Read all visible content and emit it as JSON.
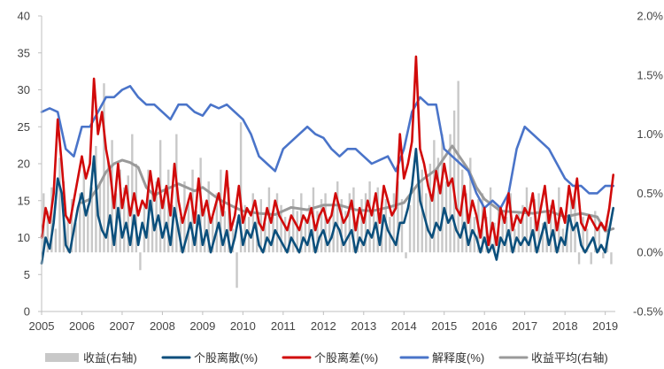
{
  "chart_data": {
    "type": "line",
    "title": "",
    "xlabel": "",
    "ylabel": "",
    "ylabel_right": "",
    "x_ticks": [
      "2005",
      "2006",
      "2007",
      "2008",
      "2009",
      "2010",
      "2011",
      "2012",
      "2013",
      "2014",
      "2015",
      "2016",
      "2017",
      "2018",
      "2019"
    ],
    "x_range": [
      2005.0,
      2019.25
    ],
    "y_left_ticks": [
      "0",
      "5",
      "10",
      "15",
      "20",
      "25",
      "30",
      "35",
      "40"
    ],
    "y_left_range": [
      0,
      40
    ],
    "y_right_ticks": [
      "-0.5%",
      "0.0%",
      "0.5%",
      "1.0%",
      "1.5%",
      "2.0%"
    ],
    "y_right_range": [
      -0.5,
      2.0
    ],
    "grid": false,
    "legend_position": "bottom",
    "legend": [
      "收益(右轴)",
      "个股离散(%)",
      "个股离差(%)",
      "解释度(%)",
      "收益平均(右轴)"
    ],
    "colors": {
      "收益(右轴)": "#c8c8c8",
      "个股离散(%)": "#0b4f7c",
      "个股离差(%)": "#d10a0a",
      "解释度(%)": "#4a74c9",
      "收益平均(右轴)": "#9a9a9a"
    },
    "series": [
      {
        "name": "个股离散(%)",
        "axis": "left",
        "type": "line",
        "x": [
          2005.0,
          2005.1,
          2005.2,
          2005.3,
          2005.4,
          2005.5,
          2005.6,
          2005.7,
          2005.8,
          2005.9,
          2006.0,
          2006.1,
          2006.2,
          2006.3,
          2006.4,
          2006.5,
          2006.6,
          2006.7,
          2006.8,
          2006.9,
          2007.0,
          2007.1,
          2007.2,
          2007.3,
          2007.4,
          2007.5,
          2007.6,
          2007.7,
          2007.8,
          2007.9,
          2008.0,
          2008.1,
          2008.2,
          2008.3,
          2008.4,
          2008.5,
          2008.6,
          2008.7,
          2008.8,
          2008.9,
          2009.0,
          2009.1,
          2009.2,
          2009.3,
          2009.4,
          2009.5,
          2009.6,
          2009.7,
          2009.8,
          2009.9,
          2010.0,
          2010.1,
          2010.2,
          2010.3,
          2010.4,
          2010.5,
          2010.6,
          2010.7,
          2010.8,
          2010.9,
          2011.0,
          2011.1,
          2011.2,
          2011.3,
          2011.4,
          2011.5,
          2011.6,
          2011.7,
          2011.8,
          2011.9,
          2012.0,
          2012.1,
          2012.2,
          2012.3,
          2012.4,
          2012.5,
          2012.6,
          2012.7,
          2012.8,
          2012.9,
          2013.0,
          2013.1,
          2013.2,
          2013.3,
          2013.4,
          2013.5,
          2013.6,
          2013.7,
          2013.8,
          2013.9,
          2014.0,
          2014.1,
          2014.2,
          2014.3,
          2014.4,
          2014.5,
          2014.6,
          2014.7,
          2014.8,
          2014.9,
          2015.0,
          2015.1,
          2015.2,
          2015.3,
          2015.4,
          2015.5,
          2015.6,
          2015.7,
          2015.8,
          2015.9,
          2016.0,
          2016.1,
          2016.2,
          2016.3,
          2016.4,
          2016.5,
          2016.6,
          2016.7,
          2016.8,
          2016.9,
          2017.0,
          2017.1,
          2017.2,
          2017.3,
          2017.4,
          2017.5,
          2017.6,
          2017.7,
          2017.8,
          2017.9,
          2018.0,
          2018.1,
          2018.2,
          2018.3,
          2018.4,
          2018.5,
          2018.6,
          2018.7,
          2018.8,
          2018.9,
          2019.0,
          2019.1,
          2019.2
        ],
        "values": [
          6.5,
          10,
          8.5,
          12,
          18,
          16,
          9,
          8,
          11,
          14,
          16,
          13,
          15,
          21,
          13,
          11,
          10,
          13,
          9,
          14,
          10,
          12,
          9,
          13,
          9,
          12,
          10,
          15,
          11,
          13,
          10,
          12,
          9,
          14,
          11,
          8,
          10,
          12,
          9,
          13,
          9,
          11,
          8,
          10,
          12,
          9,
          11,
          8,
          10,
          13,
          9,
          11,
          10,
          12,
          9,
          8,
          10,
          9,
          11,
          10,
          9,
          8,
          10,
          9,
          8,
          10,
          9,
          11,
          8,
          10,
          11,
          9,
          10,
          12,
          11,
          9,
          10,
          11,
          8,
          10,
          9,
          11,
          10,
          12,
          9,
          13,
          11,
          10,
          9,
          12,
          12,
          14,
          17,
          22,
          15,
          13,
          11,
          10,
          12,
          11,
          14,
          12,
          13,
          11,
          10,
          12,
          9,
          11,
          10,
          8,
          10,
          8,
          9,
          7,
          10,
          9,
          11,
          8,
          10,
          9,
          10,
          9,
          11,
          8,
          10,
          12,
          9,
          11,
          8,
          10,
          9,
          13,
          11,
          12,
          9,
          8,
          9,
          10,
          8,
          9,
          8,
          11,
          14
        ]
      },
      {
        "name": "个股离差(%)",
        "axis": "left",
        "type": "line",
        "x": [
          2005.0,
          2005.1,
          2005.2,
          2005.3,
          2005.4,
          2005.5,
          2005.6,
          2005.7,
          2005.8,
          2005.9,
          2006.0,
          2006.1,
          2006.2,
          2006.3,
          2006.4,
          2006.5,
          2006.6,
          2006.7,
          2006.8,
          2006.9,
          2007.0,
          2007.1,
          2007.2,
          2007.3,
          2007.4,
          2007.5,
          2007.6,
          2007.7,
          2007.8,
          2007.9,
          2008.0,
          2008.1,
          2008.2,
          2008.3,
          2008.4,
          2008.5,
          2008.6,
          2008.7,
          2008.8,
          2008.9,
          2009.0,
          2009.1,
          2009.2,
          2009.3,
          2009.4,
          2009.5,
          2009.6,
          2009.7,
          2009.8,
          2009.9,
          2010.0,
          2010.1,
          2010.2,
          2010.3,
          2010.4,
          2010.5,
          2010.6,
          2010.7,
          2010.8,
          2010.9,
          2011.0,
          2011.1,
          2011.2,
          2011.3,
          2011.4,
          2011.5,
          2011.6,
          2011.7,
          2011.8,
          2011.9,
          2012.0,
          2012.1,
          2012.2,
          2012.3,
          2012.4,
          2012.5,
          2012.6,
          2012.7,
          2012.8,
          2012.9,
          2013.0,
          2013.1,
          2013.2,
          2013.3,
          2013.4,
          2013.5,
          2013.6,
          2013.7,
          2013.8,
          2013.9,
          2014.0,
          2014.1,
          2014.2,
          2014.3,
          2014.4,
          2014.5,
          2014.6,
          2014.7,
          2014.8,
          2014.9,
          2015.0,
          2015.1,
          2015.2,
          2015.3,
          2015.4,
          2015.5,
          2015.6,
          2015.7,
          2015.8,
          2015.9,
          2016.0,
          2016.1,
          2016.2,
          2016.3,
          2016.4,
          2016.5,
          2016.6,
          2016.7,
          2016.8,
          2016.9,
          2017.0,
          2017.1,
          2017.2,
          2017.3,
          2017.4,
          2017.5,
          2017.6,
          2017.7,
          2017.8,
          2017.9,
          2018.0,
          2018.1,
          2018.2,
          2018.3,
          2018.4,
          2018.5,
          2018.6,
          2018.7,
          2018.8,
          2018.9,
          2019.0,
          2019.1,
          2019.2
        ],
        "values": [
          10,
          14,
          12,
          16,
          26,
          20,
          13,
          12,
          15,
          18,
          21,
          18,
          20,
          31.5,
          24,
          27,
          22,
          19,
          14,
          20,
          14,
          17,
          13,
          16,
          13,
          15,
          14,
          19,
          15,
          18,
          14,
          17,
          13,
          20,
          15,
          12,
          14,
          16,
          12,
          18,
          13,
          15,
          12,
          14,
          16,
          13,
          19,
          11,
          13,
          17,
          12,
          14,
          13,
          15,
          12,
          11,
          14,
          12,
          15,
          13,
          12,
          11,
          13,
          12,
          11,
          13,
          12,
          14,
          11,
          13,
          14,
          12,
          13,
          16,
          14,
          12,
          13,
          15,
          11,
          14,
          12,
          15,
          13,
          16,
          12,
          17,
          15,
          13,
          14,
          24,
          18,
          20,
          23,
          34.5,
          22,
          20,
          17,
          15,
          19,
          16,
          20,
          17,
          18,
          14,
          13,
          17,
          12,
          15,
          13,
          10,
          14,
          9,
          12,
          9,
          14,
          12,
          16,
          11,
          13,
          12,
          14,
          13,
          16,
          11,
          14,
          17,
          12,
          15,
          11,
          14,
          12,
          17,
          14,
          18,
          12,
          11,
          13,
          12,
          11,
          12,
          11,
          14,
          18.5
        ]
      },
      {
        "name": "解释度(%)",
        "axis": "left",
        "type": "line",
        "x": [
          2005.0,
          2005.2,
          2005.4,
          2005.6,
          2005.8,
          2006.0,
          2006.2,
          2006.4,
          2006.6,
          2006.8,
          2007.0,
          2007.2,
          2007.4,
          2007.6,
          2007.8,
          2008.0,
          2008.2,
          2008.4,
          2008.6,
          2008.8,
          2009.0,
          2009.2,
          2009.4,
          2009.6,
          2009.8,
          2010.0,
          2010.2,
          2010.4,
          2010.6,
          2010.8,
          2011.0,
          2011.2,
          2011.4,
          2011.6,
          2011.8,
          2012.0,
          2012.2,
          2012.4,
          2012.6,
          2012.8,
          2013.0,
          2013.2,
          2013.4,
          2013.6,
          2013.8,
          2014.0,
          2014.2,
          2014.4,
          2014.6,
          2014.8,
          2015.0,
          2015.2,
          2015.4,
          2015.6,
          2015.8,
          2016.0,
          2016.2,
          2016.4,
          2016.6,
          2016.8,
          2017.0,
          2017.2,
          2017.4,
          2017.6,
          2017.8,
          2018.0,
          2018.2,
          2018.4,
          2018.6,
          2018.8,
          2019.0,
          2019.2
        ],
        "values": [
          27,
          27.5,
          27,
          22,
          21,
          25,
          25,
          27,
          29,
          29,
          30,
          30.5,
          29,
          28,
          28,
          27,
          26,
          28,
          28,
          27,
          26.5,
          28,
          27.5,
          28,
          27,
          26,
          24,
          21,
          20,
          19,
          22,
          23,
          24,
          25,
          24,
          23.5,
          22,
          21,
          22,
          22,
          21,
          20,
          20.5,
          21,
          19,
          22,
          27,
          29,
          28,
          28,
          22,
          21,
          20,
          19,
          16,
          14,
          15,
          14,
          16,
          22,
          25,
          24,
          23,
          22,
          20,
          18,
          17,
          17,
          16,
          16,
          17,
          17
        ]
      },
      {
        "name": "收益平均(右轴)",
        "axis": "right",
        "type": "line",
        "x": [
          2005.0,
          2005.4,
          2005.8,
          2006.0,
          2006.2,
          2006.4,
          2006.6,
          2006.8,
          2007.0,
          2007.2,
          2007.4,
          2007.6,
          2007.8,
          2008.0,
          2008.4,
          2008.8,
          2009.0,
          2009.4,
          2009.8,
          2010.0,
          2010.4,
          2010.8,
          2011.2,
          2011.6,
          2012.0,
          2012.4,
          2012.8,
          2013.2,
          2013.6,
          2014.0,
          2014.4,
          2014.8,
          2015.0,
          2015.2,
          2015.4,
          2015.6,
          2015.8,
          2016.0,
          2016.4,
          2016.8,
          2017.2,
          2017.6,
          2018.0,
          2018.4,
          2018.8,
          2019.0,
          2019.2
        ],
        "values": [
          null,
          null,
          null,
          0.42,
          0.45,
          0.55,
          0.68,
          0.75,
          0.78,
          0.76,
          0.72,
          0.55,
          0.48,
          0.52,
          0.58,
          0.52,
          0.55,
          0.45,
          0.38,
          0.35,
          0.33,
          0.32,
          0.38,
          0.36,
          0.4,
          0.4,
          0.36,
          0.35,
          0.38,
          0.42,
          0.6,
          0.7,
          0.8,
          0.9,
          0.8,
          0.7,
          0.55,
          0.45,
          0.35,
          0.34,
          0.33,
          0.35,
          0.3,
          0.33,
          0.3,
          0.18,
          0.2
        ]
      },
      {
        "name": "收益(右轴)",
        "axis": "right",
        "type": "bar",
        "x": [
          2005.05,
          2005.15,
          2005.25,
          2005.35,
          2005.45,
          2005.55,
          2005.65,
          2005.75,
          2005.85,
          2005.95,
          2006.05,
          2006.15,
          2006.25,
          2006.35,
          2006.45,
          2006.55,
          2006.65,
          2006.75,
          2006.85,
          2006.95,
          2007.05,
          2007.15,
          2007.25,
          2007.35,
          2007.45,
          2007.55,
          2007.65,
          2007.75,
          2007.85,
          2007.95,
          2008.05,
          2008.15,
          2008.25,
          2008.35,
          2008.45,
          2008.55,
          2008.65,
          2008.75,
          2008.85,
          2008.95,
          2009.05,
          2009.15,
          2009.25,
          2009.35,
          2009.45,
          2009.55,
          2009.65,
          2009.75,
          2009.85,
          2009.95,
          2010.05,
          2010.15,
          2010.25,
          2010.35,
          2010.45,
          2010.55,
          2010.65,
          2010.75,
          2010.85,
          2010.95,
          2011.05,
          2011.15,
          2011.25,
          2011.35,
          2011.45,
          2011.55,
          2011.65,
          2011.75,
          2011.85,
          2011.95,
          2012.05,
          2012.15,
          2012.25,
          2012.35,
          2012.45,
          2012.55,
          2012.65,
          2012.75,
          2012.85,
          2012.95,
          2013.05,
          2013.15,
          2013.25,
          2013.35,
          2013.45,
          2013.55,
          2013.65,
          2013.75,
          2013.85,
          2013.95,
          2014.05,
          2014.15,
          2014.25,
          2014.35,
          2014.45,
          2014.55,
          2014.65,
          2014.75,
          2014.85,
          2014.95,
          2015.05,
          2015.15,
          2015.25,
          2015.35,
          2015.45,
          2015.55,
          2015.65,
          2015.75,
          2015.85,
          2015.95,
          2016.05,
          2016.15,
          2016.25,
          2016.35,
          2016.45,
          2016.55,
          2016.65,
          2016.75,
          2016.85,
          2016.95,
          2017.05,
          2017.15,
          2017.25,
          2017.35,
          2017.45,
          2017.55,
          2017.65,
          2017.75,
          2017.85,
          2017.95,
          2018.05,
          2018.15,
          2018.25,
          2018.35,
          2018.45,
          2018.55,
          2018.65,
          2018.75,
          2018.85,
          2018.95,
          2019.05,
          2019.15
        ],
        "values": [
          0.5,
          0.35,
          0.55,
          0.2,
          0.8,
          0.6,
          0.3,
          0.45,
          0.25,
          0.5,
          0.7,
          0.4,
          0.55,
          0.9,
          0.6,
          1.43,
          0.8,
          0.95,
          0.5,
          0.7,
          0.55,
          0.65,
          1.0,
          0.75,
          -0.15,
          0.4,
          0.7,
          0.5,
          0.6,
          0.95,
          0.45,
          0.7,
          0.4,
          1.0,
          0.3,
          0.6,
          0.45,
          0.7,
          0.35,
          0.8,
          0.4,
          0.6,
          0.3,
          0.5,
          0.7,
          0.35,
          0.55,
          0.2,
          -0.3,
          1.1,
          0.4,
          0.3,
          0.5,
          0.35,
          0.45,
          0.25,
          0.55,
          0.35,
          0.5,
          0.4,
          0.3,
          0.25,
          0.45,
          0.35,
          0.5,
          0.3,
          0.4,
          0.55,
          0.35,
          0.45,
          0.5,
          0.3,
          0.4,
          0.6,
          0.45,
          0.35,
          0.5,
          0.55,
          0.3,
          0.45,
          0.5,
          0.6,
          0.35,
          0.55,
          0.4,
          0.45,
          0.3,
          0.5,
          0.6,
          0.45,
          -0.05,
          0.4,
          0.55,
          0.65,
          0.7,
          0.5,
          0.75,
          0.95,
          0.8,
          1.0,
          0.6,
          1.0,
          1.2,
          1.45,
          0.7,
          0.5,
          0.8,
          0.3,
          0.45,
          0.5,
          0.3,
          0.55,
          0.25,
          0.4,
          0.35,
          0.3,
          0.5,
          0.2,
          0.35,
          0.4,
          0.55,
          0.3,
          0.45,
          0.5,
          0.25,
          0.35,
          0.4,
          0.3,
          0.55,
          0.2,
          0.3,
          0.45,
          0.5,
          -0.1,
          0.3,
          0.2,
          -0.1,
          0.35,
          0.25,
          -0.05,
          0.3,
          -0.1
        ]
      }
    ]
  }
}
